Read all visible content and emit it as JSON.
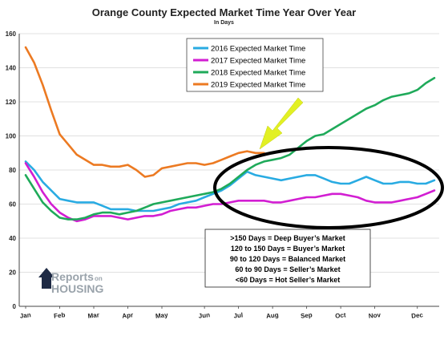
{
  "title": "Orange County Expected Market Time Year Over Year",
  "subtitle": "In Days",
  "colors": {
    "s2016": "#29abe2",
    "s2017": "#d21ed2",
    "s2018": "#1faa5a",
    "s2019": "#ec7a22",
    "arrow": "#e2f024",
    "ellipse": "#000000",
    "grid": "#d6d6d6"
  },
  "key": {
    "items": [
      ">150 Days = Deep Buyer’s Market",
      "120 to 150 Days = Buyer’s Market",
      "90 to 120 Days = Balanced Market",
      "60 to 90 Days = Seller’s Market",
      "<60 Days = Hot Seller’s Market"
    ]
  },
  "logo": {
    "line1": "Reports",
    "on": "on",
    "line2": "HOUSING",
    "icon": "house-r-logo-icon"
  },
  "annotations": {
    "arrow_icon": "yellow-arrow-icon",
    "ellipse_icon": "highlight-ellipse-icon"
  },
  "chart_data": {
    "type": "line",
    "title": "Orange County Expected Market Time Year Over Year",
    "subtitle": "In Days",
    "xlabel": "",
    "ylabel": "",
    "ylim": [
      0,
      160
    ],
    "yticks": [
      0,
      20,
      40,
      60,
      80,
      100,
      120,
      140,
      160
    ],
    "grid": true,
    "legend_position": "top-right",
    "xticks": [
      {
        "label": "Jan",
        "week": 0
      },
      {
        "label": "Feb",
        "week": 4
      },
      {
        "label": "Mar",
        "week": 8
      },
      {
        "label": "Apr",
        "week": 12
      },
      {
        "label": "May",
        "week": 16
      },
      {
        "label": "Jun",
        "week": 21
      },
      {
        "label": "Jul",
        "week": 25
      },
      {
        "label": "Aug",
        "week": 29
      },
      {
        "label": "Sep",
        "week": 33
      },
      {
        "label": "Oct",
        "week": 37
      },
      {
        "label": "Nov",
        "week": 41
      },
      {
        "label": "Dec",
        "week": 46
      }
    ],
    "x_max_week": 48,
    "series": [
      {
        "name": "2016 Expected Market Time",
        "x": [
          0,
          1,
          2,
          3,
          4,
          5,
          6,
          7,
          8,
          9,
          10,
          11,
          12,
          13,
          14,
          15,
          16,
          17,
          18,
          19,
          20,
          21,
          22,
          23,
          24,
          25,
          26,
          27,
          28,
          29,
          30,
          31,
          32,
          33,
          34,
          35,
          36,
          37,
          38,
          39,
          40,
          41,
          42,
          43,
          44,
          45,
          46,
          47,
          48
        ],
        "values": [
          85,
          80,
          73,
          68,
          63,
          62,
          61,
          61,
          61,
          59,
          57,
          57,
          57,
          56,
          56,
          56,
          57,
          58,
          60,
          61,
          62,
          64,
          66,
          68,
          71,
          75,
          79,
          77,
          76,
          75,
          74,
          75,
          76,
          77,
          77,
          75,
          73,
          72,
          72,
          74,
          76,
          74,
          72,
          72,
          73,
          73,
          72,
          72,
          74
        ]
      },
      {
        "name": "2017 Expected Market Time",
        "x": [
          0,
          1,
          2,
          3,
          4,
          5,
          6,
          7,
          8,
          9,
          10,
          11,
          12,
          13,
          14,
          15,
          16,
          17,
          18,
          19,
          20,
          21,
          22,
          23,
          24,
          25,
          26,
          27,
          28,
          29,
          30,
          31,
          32,
          33,
          34,
          35,
          36,
          37,
          38,
          39,
          40,
          41,
          42,
          43,
          44,
          45,
          46,
          47,
          48
        ],
        "values": [
          84,
          76,
          67,
          60,
          55,
          52,
          50,
          51,
          53,
          53,
          53,
          52,
          51,
          52,
          53,
          53,
          54,
          56,
          57,
          58,
          58,
          59,
          60,
          60,
          61,
          62,
          62,
          62,
          62,
          61,
          61,
          62,
          63,
          64,
          64,
          65,
          66,
          66,
          65,
          64,
          62,
          61,
          61,
          61,
          62,
          63,
          64,
          66,
          68
        ]
      },
      {
        "name": "2018 Expected Market Time",
        "x": [
          0,
          1,
          2,
          3,
          4,
          5,
          6,
          7,
          8,
          9,
          10,
          11,
          12,
          13,
          14,
          15,
          16,
          17,
          18,
          19,
          20,
          21,
          22,
          23,
          24,
          25,
          26,
          27,
          28,
          29,
          30,
          31,
          32,
          33,
          34,
          35,
          36,
          37,
          38,
          39,
          40,
          41,
          42,
          43,
          44,
          45,
          46,
          47,
          48
        ],
        "values": [
          77,
          69,
          61,
          56,
          52,
          51,
          51,
          52,
          54,
          55,
          55,
          54,
          55,
          56,
          58,
          60,
          61,
          62,
          63,
          64,
          65,
          66,
          67,
          69,
          72,
          76,
          80,
          83,
          85,
          86,
          87,
          89,
          93,
          97,
          100,
          101,
          104,
          107,
          110,
          113,
          116,
          118,
          121,
          123,
          124,
          125,
          127,
          131,
          134
        ]
      },
      {
        "name": "2019 Expected Market Time",
        "x": [
          0,
          1,
          2,
          3,
          4,
          5,
          6,
          7,
          8,
          9,
          10,
          11,
          12,
          13,
          14,
          15,
          16,
          17,
          18,
          19,
          20,
          21,
          22,
          23,
          24,
          25,
          26,
          27,
          28
        ],
        "values": [
          152,
          143,
          130,
          115,
          101,
          95,
          89,
          86,
          83,
          83,
          82,
          82,
          83,
          80,
          76,
          77,
          81,
          82,
          83,
          84,
          84,
          83,
          84,
          86,
          88,
          90,
          91,
          90,
          90
        ]
      }
    ]
  }
}
